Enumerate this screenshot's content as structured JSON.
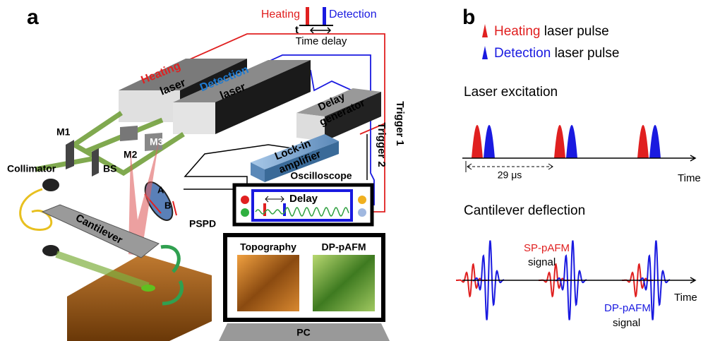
{
  "panel_a": {
    "label": "a",
    "timing": {
      "heating": "Heating",
      "detection": "Detection",
      "t": "t",
      "time_delay": "Time delay"
    },
    "heating_laser": {
      "name": "Heating",
      "word": "laser"
    },
    "detection_laser": {
      "name": "Detection",
      "word": "laser"
    },
    "mirrors": [
      "M1",
      "M2",
      "M3"
    ],
    "beam_splitter": "BS",
    "collimator": "Collimator",
    "delay_generator": [
      "Delay",
      "generator"
    ],
    "lock_in": [
      "Lock-in",
      "amplifier"
    ],
    "trigger_1": "Trigger 1",
    "trigger_2": "Trigger 2",
    "oscilloscope": {
      "title": "Oscilloscope",
      "delay": "Delay"
    },
    "pspd": {
      "name": "PSPD",
      "a": "A",
      "b": "B"
    },
    "cantilever": "Cantilever",
    "pc": {
      "images": [
        "Topography",
        "DP-pAFM"
      ],
      "name": "PC"
    }
  },
  "panel_b": {
    "label": "b",
    "legend": [
      {
        "name": "Heating",
        "rest": "laser pulse"
      },
      {
        "name": "Detection",
        "rest": "laser pulse"
      }
    ],
    "excitation": {
      "title": "Laser excitation",
      "period": "29 μs",
      "axis": "Time"
    },
    "deflection": {
      "title": "Cantilever deflection",
      "sp": [
        "SP-pAFM",
        "signal"
      ],
      "dp": [
        "DP-pAFM",
        "signal"
      ],
      "axis": "Time"
    }
  }
}
